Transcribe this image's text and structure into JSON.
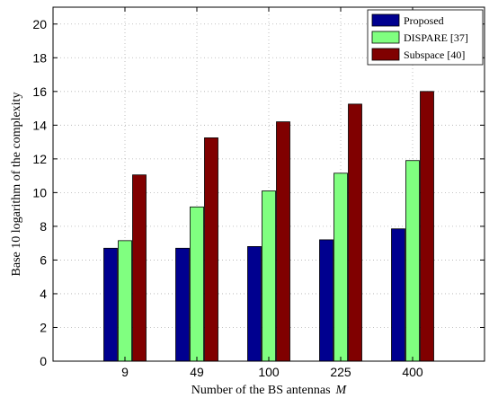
{
  "chart_data": {
    "type": "bar",
    "categories": [
      "9",
      "49",
      "100",
      "225",
      "400"
    ],
    "series": [
      {
        "name": "Proposed",
        "color": "#00008f",
        "values": [
          6.7,
          6.7,
          6.8,
          7.2,
          7.85
        ]
      },
      {
        "name": "DISPARE [37]",
        "color": "#80ff80",
        "values": [
          7.15,
          9.15,
          10.1,
          11.15,
          11.9
        ]
      },
      {
        "name": "Subspace [40]",
        "color": "#800000",
        "values": [
          11.05,
          13.25,
          14.2,
          15.25,
          16.0
        ]
      }
    ],
    "xlabel": "Number of the BS antennas",
    "xlabel_symbol": "M",
    "ylabel": "Base 10 logarithm of the complexity",
    "ylim": [
      0,
      21
    ],
    "yticks": [
      0,
      2,
      4,
      6,
      8,
      10,
      12,
      14,
      16,
      18,
      20
    ],
    "grid": true,
    "legend_position": "top-right"
  }
}
